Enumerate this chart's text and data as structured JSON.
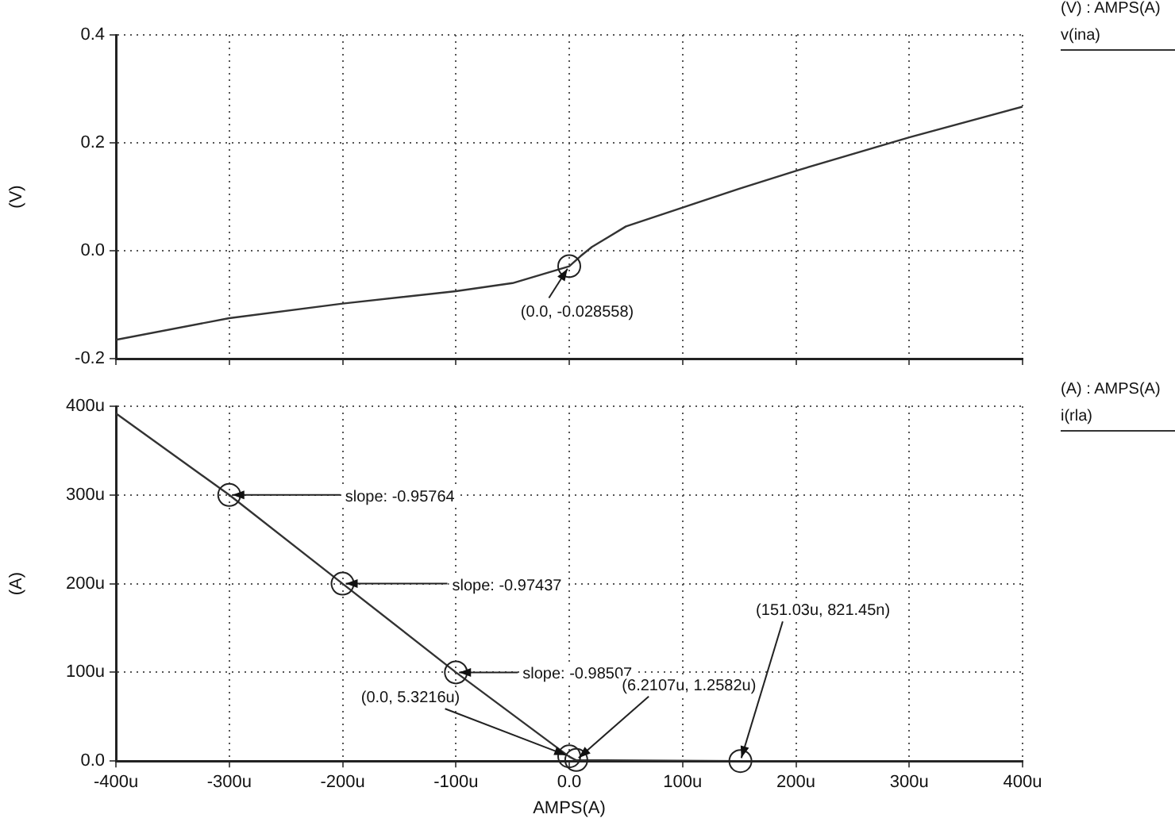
{
  "chart_data": [
    {
      "type": "line",
      "ylabel": "(V)",
      "legend_title": "(V) : AMPS(A)",
      "legend": "top right",
      "grid": true,
      "tick_labels": "y",
      "x": [
        -400,
        -300,
        -200,
        -100,
        -50,
        0,
        10,
        20,
        50,
        100,
        150,
        200,
        300,
        400
      ],
      "series": [
        {
          "name": "v(ina)",
          "color": "#333333",
          "values": [
            -0.165,
            -0.125,
            -0.098,
            -0.075,
            -0.06,
            -0.029,
            -0.01,
            0.007,
            0.045,
            0.08,
            0.115,
            0.148,
            0.21,
            0.267
          ]
        }
      ],
      "xlim": [
        -400,
        400
      ],
      "xticks": [
        -400,
        -300,
        -200,
        -100,
        0,
        100,
        200,
        300,
        400
      ],
      "ylim": [
        -0.2,
        0.4
      ],
      "yticks": [
        {
          "value": -0.2,
          "label": "-0.2"
        },
        {
          "value": 0,
          "label": "0.0"
        },
        {
          "value": 0.2,
          "label": "0.2"
        },
        {
          "value": 0.4,
          "label": "0.4"
        }
      ],
      "annotations": [
        {
          "text": "(0.0, -0.028558)",
          "x": 0,
          "y": -0.028558
        }
      ]
    },
    {
      "type": "line",
      "xlabel": "AMPS(A)",
      "ylabel": "(A)",
      "legend_title": "(A) : AMPS(A)",
      "legend": "top right",
      "grid": true,
      "x": [
        -400,
        -300,
        -200,
        -100,
        0,
        6,
        151,
        400
      ],
      "series": [
        {
          "name": "i(rla)",
          "color": "#333333",
          "values": [
            392,
            300,
            200,
            100,
            5,
            1,
            0,
            0
          ]
        }
      ],
      "xlim": [
        -400,
        400
      ],
      "xticks": [
        {
          "value": -400,
          "label": "-400u"
        },
        {
          "value": -300,
          "label": "-300u"
        },
        {
          "value": -200,
          "label": "-200u"
        },
        {
          "value": -100,
          "label": "-100u"
        },
        {
          "value": 0,
          "label": "0.0"
        },
        {
          "value": 100,
          "label": "100u"
        },
        {
          "value": 200,
          "label": "200u"
        },
        {
          "value": 300,
          "label": "300u"
        },
        {
          "value": 400,
          "label": "400u"
        }
      ],
      "ylim": [
        0,
        400
      ],
      "yticks": [
        {
          "value": 0,
          "label": "0.0"
        },
        {
          "value": 100,
          "label": "100u"
        },
        {
          "value": 200,
          "label": "200u"
        },
        {
          "value": 300,
          "label": "300u"
        },
        {
          "value": 400,
          "label": "400u"
        }
      ],
      "annotations": [
        {
          "text": "slope: -0.95764",
          "x": -300,
          "y": 300
        },
        {
          "text": "slope: -0.97437",
          "x": -200,
          "y": 200
        },
        {
          "text": "slope: -0.98507",
          "x": -100,
          "y": 100
        },
        {
          "text": "(0.0, 5.3216u)",
          "x": 0,
          "y": 5.3216
        },
        {
          "text": "(6.2107u, 1.2582u)",
          "x": 6.2107,
          "y": 1.2582
        },
        {
          "text": "(151.03u, 821.45n)",
          "x": 151.03,
          "y": 0.00082145
        }
      ]
    }
  ]
}
